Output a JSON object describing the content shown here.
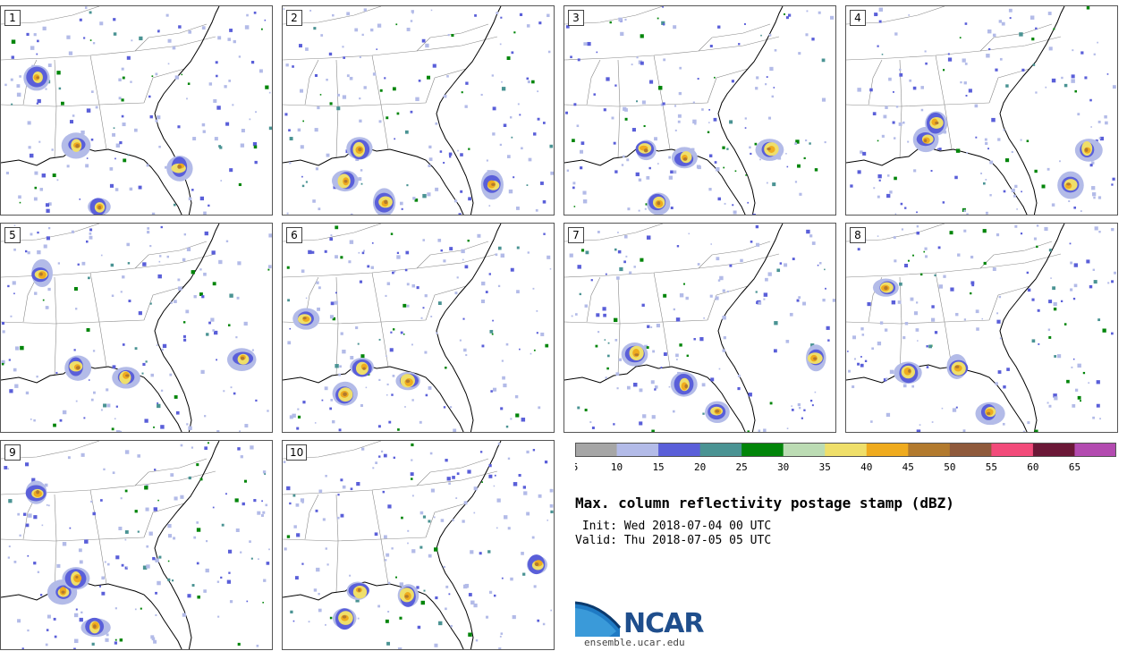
{
  "panels": [
    {
      "label": "1"
    },
    {
      "label": "2"
    },
    {
      "label": "3"
    },
    {
      "label": "4"
    },
    {
      "label": "5"
    },
    {
      "label": "6"
    },
    {
      "label": "7"
    },
    {
      "label": "8"
    },
    {
      "label": "9"
    },
    {
      "label": "10"
    }
  ],
  "colorbar": {
    "ticks": [
      "5",
      "10",
      "15",
      "20",
      "25",
      "30",
      "35",
      "40",
      "45",
      "50",
      "55",
      "60",
      "65"
    ],
    "colors": [
      "#a6a6a6",
      "#b3bbe8",
      "#5a5fd9",
      "#4a9393",
      "#02850a",
      "#bcdcb4",
      "#efdf6a",
      "#efab1e",
      "#b27a2e",
      "#8f5a3c",
      "#f24b7a",
      "#6b1837",
      "#b34bb0"
    ]
  },
  "title": "Max. column reflectivity postage stamp (dBZ)",
  "init": " Init: Wed 2018-07-04 00 UTC",
  "valid": "Valid: Thu 2018-07-05 05 UTC",
  "logo": {
    "text": "NCAR",
    "url": "ensemble.ucar.edu"
  }
}
